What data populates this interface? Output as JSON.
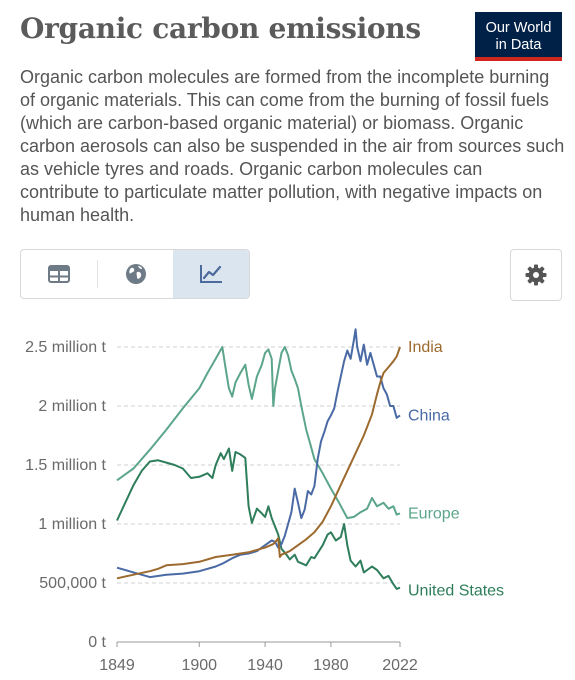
{
  "header": {
    "title": "Organic carbon emissions",
    "logo_line1": "Our World",
    "logo_line2": "in Data",
    "subtitle": "Organic carbon molecules are formed from the incomplete burning of organic materials. This can come from the burning of fossil fuels (which are carbon-based organic material) or biomass. Organic carbon aerosols can also be suspended in the air from sources such as vehicle tyres and roads. Organic carbon molecules can contribute to particulate matter pollution, with negative impacts on human health."
  },
  "toolbar": {
    "tabs": [
      {
        "icon": "table-icon",
        "active": false
      },
      {
        "icon": "globe-icon",
        "active": false
      },
      {
        "icon": "line-chart-icon",
        "active": true
      }
    ],
    "settings_icon": "gear-icon"
  },
  "colors": {
    "background": "#ffffff",
    "logo_bg": "#002147",
    "logo_accent": "#ce261e",
    "tab_active_bg": "#dbe5f0",
    "icon": "#6e7a86",
    "icon_active": "#4c6a9c",
    "grid": "#d0d0d0"
  },
  "chart_data": {
    "type": "line",
    "title": "Organic carbon emissions",
    "xlabel": "",
    "ylabel": "",
    "xlim": [
      1850,
      2022
    ],
    "ylim": [
      0,
      2500000
    ],
    "x_ticks": [
      "1849",
      "1900",
      "1940",
      "1980",
      "2022"
    ],
    "y_ticks": [
      "0 t",
      "500,000 t",
      "1 million t",
      "1.5 million t",
      "2 million t",
      "2.5 million t"
    ],
    "grid": "horizontal dashed",
    "legend": "inline labels at line ends (right)",
    "series": [
      {
        "name": "Europe",
        "color": "#5ba58a",
        "points": [
          [
            1850,
            1370000
          ],
          [
            1860,
            1470000
          ],
          [
            1870,
            1630000
          ],
          [
            1880,
            1800000
          ],
          [
            1890,
            1980000
          ],
          [
            1900,
            2150000
          ],
          [
            1905,
            2280000
          ],
          [
            1910,
            2400000
          ],
          [
            1912,
            2450000
          ],
          [
            1914,
            2500000
          ],
          [
            1916,
            2320000
          ],
          [
            1918,
            2150000
          ],
          [
            1920,
            2080000
          ],
          [
            1922,
            2200000
          ],
          [
            1925,
            2280000
          ],
          [
            1928,
            2350000
          ],
          [
            1930,
            2180000
          ],
          [
            1932,
            2060000
          ],
          [
            1935,
            2250000
          ],
          [
            1938,
            2350000
          ],
          [
            1940,
            2450000
          ],
          [
            1942,
            2480000
          ],
          [
            1944,
            2400000
          ],
          [
            1945,
            2000000
          ],
          [
            1946,
            2150000
          ],
          [
            1948,
            2300000
          ],
          [
            1950,
            2450000
          ],
          [
            1952,
            2500000
          ],
          [
            1954,
            2430000
          ],
          [
            1956,
            2300000
          ],
          [
            1958,
            2230000
          ],
          [
            1960,
            2150000
          ],
          [
            1962,
            2000000
          ],
          [
            1965,
            1800000
          ],
          [
            1968,
            1650000
          ],
          [
            1970,
            1550000
          ],
          [
            1975,
            1430000
          ],
          [
            1980,
            1300000
          ],
          [
            1985,
            1180000
          ],
          [
            1990,
            1050000
          ],
          [
            1994,
            1060000
          ],
          [
            1998,
            1100000
          ],
          [
            2002,
            1130000
          ],
          [
            2005,
            1220000
          ],
          [
            2008,
            1150000
          ],
          [
            2012,
            1180000
          ],
          [
            2015,
            1130000
          ],
          [
            2018,
            1150000
          ],
          [
            2020,
            1080000
          ],
          [
            2022,
            1090000
          ]
        ]
      },
      {
        "name": "United States",
        "color": "#2e7d5b",
        "points": [
          [
            1850,
            1030000
          ],
          [
            1855,
            1180000
          ],
          [
            1860,
            1330000
          ],
          [
            1865,
            1450000
          ],
          [
            1870,
            1530000
          ],
          [
            1875,
            1540000
          ],
          [
            1880,
            1520000
          ],
          [
            1885,
            1500000
          ],
          [
            1890,
            1470000
          ],
          [
            1895,
            1390000
          ],
          [
            1900,
            1400000
          ],
          [
            1905,
            1430000
          ],
          [
            1908,
            1390000
          ],
          [
            1910,
            1500000
          ],
          [
            1913,
            1600000
          ],
          [
            1915,
            1550000
          ],
          [
            1918,
            1640000
          ],
          [
            1920,
            1450000
          ],
          [
            1922,
            1610000
          ],
          [
            1925,
            1590000
          ],
          [
            1928,
            1560000
          ],
          [
            1930,
            1150000
          ],
          [
            1932,
            1010000
          ],
          [
            1935,
            1130000
          ],
          [
            1938,
            1090000
          ],
          [
            1940,
            1060000
          ],
          [
            1942,
            1150000
          ],
          [
            1944,
            1050000
          ],
          [
            1946,
            980000
          ],
          [
            1948,
            910000
          ],
          [
            1950,
            790000
          ],
          [
            1953,
            740000
          ],
          [
            1955,
            700000
          ],
          [
            1958,
            740000
          ],
          [
            1960,
            680000
          ],
          [
            1965,
            650000
          ],
          [
            1968,
            720000
          ],
          [
            1970,
            710000
          ],
          [
            1975,
            820000
          ],
          [
            1978,
            910000
          ],
          [
            1980,
            930000
          ],
          [
            1983,
            860000
          ],
          [
            1986,
            890000
          ],
          [
            1988,
            1000000
          ],
          [
            1990,
            820000
          ],
          [
            1992,
            690000
          ],
          [
            1995,
            640000
          ],
          [
            1998,
            690000
          ],
          [
            2000,
            590000
          ],
          [
            2005,
            640000
          ],
          [
            2008,
            610000
          ],
          [
            2012,
            540000
          ],
          [
            2015,
            560000
          ],
          [
            2018,
            490000
          ],
          [
            2020,
            450000
          ],
          [
            2022,
            460000
          ]
        ]
      },
      {
        "name": "China",
        "color": "#4a6aa5",
        "points": [
          [
            1850,
            630000
          ],
          [
            1860,
            590000
          ],
          [
            1870,
            550000
          ],
          [
            1880,
            570000
          ],
          [
            1890,
            580000
          ],
          [
            1900,
            600000
          ],
          [
            1910,
            640000
          ],
          [
            1915,
            670000
          ],
          [
            1920,
            710000
          ],
          [
            1925,
            740000
          ],
          [
            1930,
            750000
          ],
          [
            1935,
            770000
          ],
          [
            1940,
            820000
          ],
          [
            1944,
            860000
          ],
          [
            1946,
            850000
          ],
          [
            1948,
            800000
          ],
          [
            1950,
            830000
          ],
          [
            1952,
            900000
          ],
          [
            1954,
            1000000
          ],
          [
            1956,
            1100000
          ],
          [
            1958,
            1300000
          ],
          [
            1960,
            1180000
          ],
          [
            1962,
            1050000
          ],
          [
            1964,
            1120000
          ],
          [
            1966,
            1280000
          ],
          [
            1968,
            1250000
          ],
          [
            1970,
            1320000
          ],
          [
            1972,
            1550000
          ],
          [
            1974,
            1700000
          ],
          [
            1976,
            1780000
          ],
          [
            1978,
            1870000
          ],
          [
            1980,
            1920000
          ],
          [
            1982,
            1980000
          ],
          [
            1984,
            2120000
          ],
          [
            1986,
            2250000
          ],
          [
            1988,
            2380000
          ],
          [
            1990,
            2470000
          ],
          [
            1992,
            2400000
          ],
          [
            1994,
            2560000
          ],
          [
            1995,
            2650000
          ],
          [
            1996,
            2500000
          ],
          [
            1998,
            2380000
          ],
          [
            2000,
            2520000
          ],
          [
            2002,
            2350000
          ],
          [
            2004,
            2450000
          ],
          [
            2006,
            2350000
          ],
          [
            2008,
            2250000
          ],
          [
            2010,
            2250000
          ],
          [
            2012,
            2150000
          ],
          [
            2014,
            2100000
          ],
          [
            2016,
            2000000
          ],
          [
            2018,
            2000000
          ],
          [
            2020,
            1900000
          ],
          [
            2022,
            1920000
          ]
        ]
      },
      {
        "name": "India",
        "color": "#9c6a2e",
        "points": [
          [
            1850,
            540000
          ],
          [
            1860,
            570000
          ],
          [
            1870,
            600000
          ],
          [
            1875,
            620000
          ],
          [
            1880,
            650000
          ],
          [
            1890,
            660000
          ],
          [
            1900,
            680000
          ],
          [
            1910,
            720000
          ],
          [
            1920,
            740000
          ],
          [
            1930,
            760000
          ],
          [
            1940,
            800000
          ],
          [
            1945,
            830000
          ],
          [
            1947,
            860000
          ],
          [
            1948,
            880000
          ],
          [
            1949,
            720000
          ],
          [
            1950,
            740000
          ],
          [
            1955,
            770000
          ],
          [
            1960,
            820000
          ],
          [
            1965,
            870000
          ],
          [
            1970,
            930000
          ],
          [
            1975,
            1020000
          ],
          [
            1980,
            1150000
          ],
          [
            1985,
            1300000
          ],
          [
            1990,
            1450000
          ],
          [
            1995,
            1600000
          ],
          [
            2000,
            1750000
          ],
          [
            2005,
            1930000
          ],
          [
            2008,
            2100000
          ],
          [
            2010,
            2200000
          ],
          [
            2012,
            2280000
          ],
          [
            2015,
            2330000
          ],
          [
            2018,
            2380000
          ],
          [
            2020,
            2420000
          ],
          [
            2022,
            2500000
          ]
        ]
      }
    ]
  }
}
